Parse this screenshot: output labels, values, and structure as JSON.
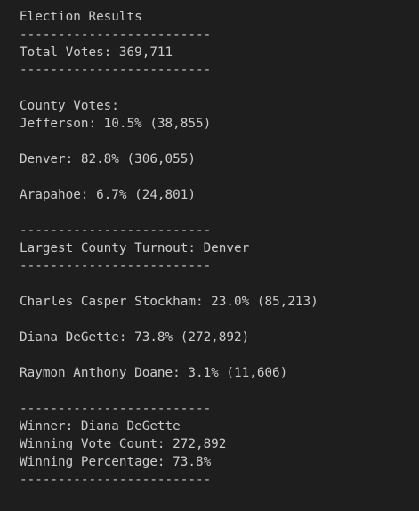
{
  "terminal": {
    "lines": [
      "Election Results",
      "-------------------------",
      "Total Votes: 369,711",
      "-------------------------",
      "",
      "County Votes:",
      "Jefferson: 10.5% (38,855)",
      "",
      "Denver: 82.8% (306,055)",
      "",
      "Arapahoe: 6.7% (24,801)",
      "",
      "-------------------------",
      "Largest County Turnout: Denver",
      "-------------------------",
      "",
      "Charles Casper Stockham: 23.0% (85,213)",
      "",
      "Diana DeGette: 73.8% (272,892)",
      "",
      "Raymon Anthony Doane: 3.1% (11,606)",
      "",
      "-------------------------",
      "Winner: Diana DeGette",
      "Winning Vote Count: 272,892",
      "Winning Percentage: 73.8%",
      "-------------------------"
    ]
  }
}
